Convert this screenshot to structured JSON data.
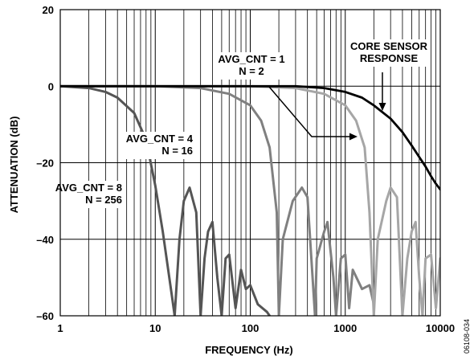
{
  "chart_data": {
    "type": "line",
    "title": "",
    "xlabel": "FREQUENCY (Hz)",
    "ylabel": "ATTENUATION (dB)",
    "x_scale": "log",
    "xlim": [
      1,
      10000
    ],
    "ylim": [
      -60,
      20
    ],
    "x_ticks": [
      "1",
      "10",
      "100",
      "1000",
      "10000"
    ],
    "y_ticks": [
      "20",
      "0",
      "–20",
      "–40",
      "–60"
    ],
    "y_tick_values": [
      20,
      0,
      -20,
      -40,
      -60
    ],
    "grid": true,
    "figure_id": "06108-034",
    "series": [
      {
        "name": "AVG_CNT = 8 N = 256",
        "color": "#555555",
        "x": [
          1,
          2,
          3,
          4,
          6,
          8,
          10,
          12,
          15,
          16,
          18,
          20,
          23,
          27,
          30,
          33,
          36,
          40,
          45,
          50,
          55,
          60,
          70,
          80,
          90,
          100,
          120,
          150,
          160
        ],
        "y": [
          0,
          -0.5,
          -1.5,
          -3,
          -7,
          -14,
          -26,
          -38,
          -55,
          -60,
          -40,
          -30,
          -26.5,
          -33,
          -60,
          -45,
          -38,
          -35.5,
          -50,
          -60,
          -45,
          -44,
          -58,
          -48,
          -53,
          -52,
          -57,
          -59,
          -60
        ]
      },
      {
        "name": "AVG_CNT = 4 N = 16",
        "color": "#808080",
        "x": [
          1,
          10,
          30,
          60,
          100,
          130,
          160,
          190,
          200,
          220,
          280,
          350,
          400,
          480,
          500,
          600,
          650,
          750,
          800,
          900,
          1000,
          1100,
          1200,
          1500,
          1800,
          2000
        ],
        "y": [
          0,
          0,
          -0.5,
          -2,
          -5,
          -9,
          -16,
          -33,
          -60,
          -40,
          -30,
          -26.5,
          -29,
          -60,
          -45,
          -38,
          -35.5,
          -50,
          -60,
          -45,
          -44,
          -58,
          -48,
          -53,
          -52,
          -57
        ]
      },
      {
        "name": "AVG_CNT = 1 N = 2",
        "color": "#a6a6a6",
        "x": [
          1,
          100,
          300,
          600,
          1000,
          1300,
          1600,
          1800,
          2000,
          2200,
          2700,
          3000,
          3500,
          4000,
          4500,
          5000,
          5500,
          6000,
          6500,
          7000,
          8000,
          9000,
          10000
        ],
        "y": [
          0,
          0,
          -0.5,
          -2,
          -5,
          -9,
          -16,
          -33,
          -60,
          -40,
          -30,
          -26.5,
          -29,
          -60,
          -45,
          -38,
          -35.5,
          -50,
          -60,
          -45,
          -44,
          -58,
          -45
        ]
      },
      {
        "name": "CORE SENSOR RESPONSE",
        "color": "#000000",
        "x": [
          1,
          300,
          600,
          1000,
          1500,
          2000,
          3000,
          4000,
          5000,
          6000,
          7000,
          8000,
          9000,
          10000
        ],
        "y": [
          0,
          0,
          -0.5,
          -1.5,
          -3,
          -5,
          -8.5,
          -12,
          -15.5,
          -18.5,
          -21,
          -23.5,
          -25.5,
          -27
        ]
      }
    ],
    "annotations": [
      {
        "lines": [
          "AVG_CNT = 8",
          "N = 256"
        ],
        "anchor": "end"
      },
      {
        "lines": [
          "AVG_CNT = 4",
          "N = 16"
        ],
        "anchor": "end"
      },
      {
        "lines": [
          "AVG_CNT = 1",
          "N = 2"
        ],
        "anchor": "middle"
      },
      {
        "lines": [
          "CORE SENSOR",
          "RESPONSE"
        ],
        "anchor": "middle"
      }
    ]
  }
}
